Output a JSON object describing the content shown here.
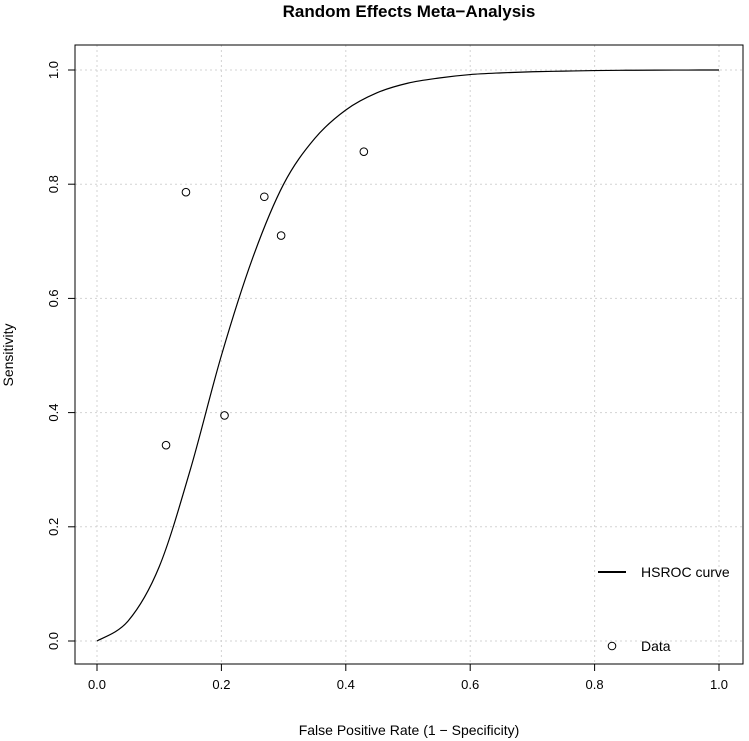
{
  "chart_data": {
    "type": "line",
    "title": "Random Effects Meta−Analysis",
    "xlabel": "False Positive Rate (1 − Specificity)",
    "ylabel": "Sensitivity",
    "xlim": [
      0,
      1
    ],
    "ylim": [
      0,
      1
    ],
    "x_ticks": [
      "0.0",
      "0.2",
      "0.4",
      "0.6",
      "0.8",
      "1.0"
    ],
    "y_ticks": [
      "0.0",
      "0.2",
      "0.4",
      "0.6",
      "0.8",
      "1.0"
    ],
    "grid": true,
    "legend_position": "bottom-right",
    "series": [
      {
        "name": "HSROC curve",
        "kind": "line",
        "color": "#000000",
        "x": [
          0.0,
          0.05,
          0.1,
          0.15,
          0.2,
          0.25,
          0.3,
          0.35,
          0.4,
          0.45,
          0.5,
          0.55,
          0.6,
          0.65,
          0.7,
          0.75,
          0.8,
          0.85,
          0.9,
          0.95,
          1.0
        ],
        "y": [
          0.0,
          0.035,
          0.13,
          0.3,
          0.5,
          0.67,
          0.8,
          0.88,
          0.93,
          0.96,
          0.977,
          0.986,
          0.992,
          0.995,
          0.997,
          0.998,
          0.999,
          0.9995,
          0.9998,
          0.9999,
          1.0
        ]
      },
      {
        "name": "Data",
        "kind": "scatter",
        "marker": "open-circle",
        "color": "#000000",
        "points": [
          {
            "x": 0.111,
            "y": 0.343
          },
          {
            "x": 0.143,
            "y": 0.786
          },
          {
            "x": 0.205,
            "y": 0.395
          },
          {
            "x": 0.269,
            "y": 0.778
          },
          {
            "x": 0.296,
            "y": 0.71
          },
          {
            "x": 0.429,
            "y": 0.857
          }
        ]
      }
    ]
  }
}
